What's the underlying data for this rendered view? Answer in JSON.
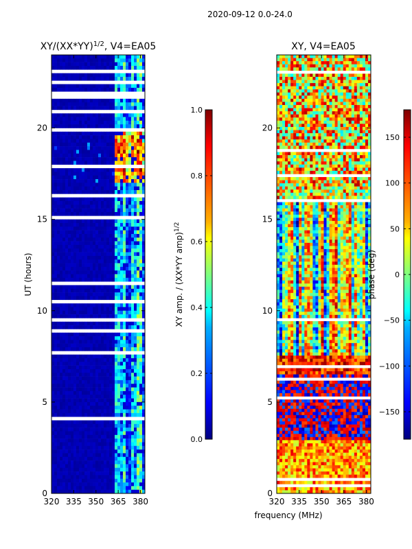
{
  "suptitle": "2020-09-12 0.0-24.0",
  "colors": {
    "axis": "#000000",
    "flag_gap": "#ffffff",
    "jet_low": "#00007f",
    "jet_high": "#7f0000"
  },
  "chart_data": [
    {
      "type": "heatmap",
      "name": "amplitude-ratio",
      "title_main": "XY/(XX*YY)",
      "title_sup": "1/2",
      "title_suffix": ", V4=EA05",
      "xlabel": "",
      "ylabel": "UT (hours)",
      "xlim": [
        320,
        383
      ],
      "ylim": [
        0,
        24
      ],
      "xticks": [
        320,
        335,
        350,
        365,
        380
      ],
      "yticks": [
        0,
        5,
        10,
        15,
        20
      ],
      "value_range": [
        0.0,
        1.0
      ],
      "background_value": 0.03,
      "bright_channels_from_mhz": 363,
      "flagged_intervals_ut_hours": [
        [
          0.35,
          0.45
        ],
        [
          0.75,
          0.85
        ],
        [
          1.35,
          1.45
        ],
        [
          2.55,
          2.62
        ],
        [
          3.8,
          3.88
        ],
        [
          4.05,
          4.12
        ],
        [
          4.75,
          4.82
        ],
        [
          5.2,
          5.27
        ],
        [
          6.2,
          6.27
        ],
        [
          6.9,
          6.96
        ],
        [
          7.35,
          7.42
        ],
        [
          7.65,
          7.72
        ],
        [
          8.55,
          8.62
        ],
        [
          8.85,
          8.92
        ],
        [
          9.15,
          9.22
        ],
        [
          9.45,
          9.52
        ],
        [
          10.5,
          10.55
        ],
        [
          11.45,
          11.52
        ],
        [
          12.35,
          12.42
        ],
        [
          13.6,
          13.66
        ],
        [
          14.6,
          14.66
        ],
        [
          15.1,
          15.16
        ],
        [
          15.55,
          15.62
        ],
        [
          16.0,
          16.06
        ],
        [
          16.3,
          16.37
        ],
        [
          16.6,
          16.67
        ],
        [
          17.35,
          17.42
        ],
        [
          17.85,
          17.92
        ],
        [
          18.4,
          18.47
        ],
        [
          18.75,
          18.82
        ],
        [
          19.2,
          19.27
        ],
        [
          19.85,
          19.92
        ],
        [
          20.55,
          20.62
        ],
        [
          20.85,
          20.92
        ],
        [
          21.55,
          21.62
        ],
        [
          21.7,
          22.0
        ],
        [
          22.45,
          22.52
        ],
        [
          22.75,
          22.82
        ],
        [
          23.05,
          23.12
        ]
      ],
      "colorbar": {
        "label_main": "XY amp. / (XX*YY amp)",
        "label_sup": "1/2",
        "ticks": [
          0.0,
          0.2,
          0.4,
          0.6,
          0.8,
          1.0
        ],
        "tick_labels": [
          "0.0",
          "0.2",
          "0.4",
          "0.6",
          "0.8",
          "1.0"
        ]
      }
    },
    {
      "type": "heatmap",
      "name": "phase",
      "title": "XY, V4=EA05",
      "xlabel": "frequency (MHz)",
      "ylabel": "",
      "xlim": [
        320,
        383
      ],
      "ylim": [
        0,
        24
      ],
      "xticks": [
        320,
        335,
        350,
        365,
        380
      ],
      "yticks": [
        0,
        5,
        10,
        15,
        20
      ],
      "value_range": [
        -180,
        180
      ],
      "flagged_intervals_ut_hours": [
        [
          0.35,
          0.45
        ],
        [
          0.75,
          0.85
        ],
        [
          2.55,
          2.62
        ],
        [
          5.2,
          5.27
        ],
        [
          6.2,
          6.27
        ],
        [
          6.9,
          6.96
        ],
        [
          9.45,
          9.52
        ],
        [
          12.35,
          12.42
        ],
        [
          15.1,
          15.16
        ],
        [
          16.0,
          16.06
        ],
        [
          16.6,
          16.67
        ],
        [
          17.35,
          17.42
        ],
        [
          18.75,
          18.82
        ],
        [
          20.55,
          20.62
        ],
        [
          20.85,
          20.92
        ],
        [
          21.55,
          21.62
        ],
        [
          22.45,
          22.52
        ],
        [
          23.05,
          23.12
        ]
      ],
      "colorbar": {
        "label": "phase (deg)",
        "ticks": [
          -150,
          -100,
          -50,
          0,
          50,
          100,
          150
        ],
        "tick_labels": [
          "−150",
          "−100",
          "−50",
          "0",
          "50",
          "100",
          "150"
        ]
      }
    }
  ]
}
